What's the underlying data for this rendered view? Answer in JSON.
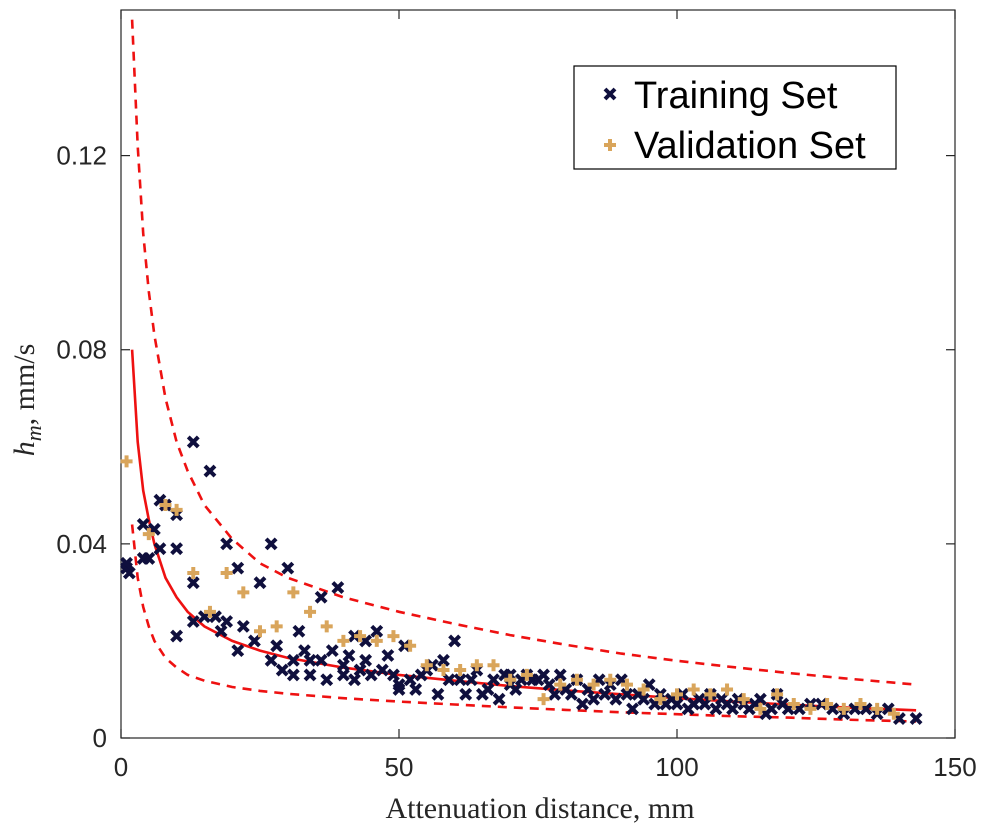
{
  "chart_data": {
    "type": "scatter",
    "title": "",
    "xlabel": "Attenuation distance, mm",
    "ylabel_main": "h",
    "ylabel_sub": "m",
    "ylabel_units": ", mm/s",
    "xlim": [
      0,
      150
    ],
    "ylim": [
      0,
      0.15
    ],
    "xticks": [
      0,
      50,
      100,
      150
    ],
    "xtick_labels": [
      "0",
      "50",
      "100",
      "150"
    ],
    "yticks": [
      0,
      0.04,
      0.08,
      0.12
    ],
    "ytick_labels": [
      "0",
      "0.04",
      "0.08",
      "0.12"
    ],
    "grid": false,
    "legend_position": "top-right",
    "series": [
      {
        "name": "Training Set",
        "marker": "x",
        "color": "#0f0f3d",
        "points": [
          [
            1,
            0.035
          ],
          [
            1,
            0.036
          ],
          [
            1.5,
            0.034
          ],
          [
            4,
            0.044
          ],
          [
            4,
            0.037
          ],
          [
            5,
            0.037
          ],
          [
            6,
            0.043
          ],
          [
            7,
            0.039
          ],
          [
            7,
            0.049
          ],
          [
            8,
            0.048
          ],
          [
            10,
            0.046
          ],
          [
            10,
            0.039
          ],
          [
            10,
            0.021
          ],
          [
            13,
            0.061
          ],
          [
            13,
            0.032
          ],
          [
            13,
            0.024
          ],
          [
            15,
            0.025
          ],
          [
            16,
            0.055
          ],
          [
            17,
            0.025
          ],
          [
            18,
            0.022
          ],
          [
            19,
            0.04
          ],
          [
            19,
            0.024
          ],
          [
            21,
            0.035
          ],
          [
            21,
            0.018
          ],
          [
            22,
            0.023
          ],
          [
            24,
            0.02
          ],
          [
            25,
            0.032
          ],
          [
            27,
            0.04
          ],
          [
            27,
            0.016
          ],
          [
            28,
            0.019
          ],
          [
            29,
            0.014
          ],
          [
            30,
            0.035
          ],
          [
            31,
            0.013
          ],
          [
            31,
            0.016
          ],
          [
            32,
            0.022
          ],
          [
            33,
            0.018
          ],
          [
            34,
            0.016
          ],
          [
            34,
            0.013
          ],
          [
            36,
            0.029
          ],
          [
            36,
            0.016
          ],
          [
            37,
            0.012
          ],
          [
            38,
            0.018
          ],
          [
            39,
            0.031
          ],
          [
            40,
            0.013
          ],
          [
            40,
            0.015
          ],
          [
            41,
            0.017
          ],
          [
            42,
            0.021
          ],
          [
            42,
            0.012
          ],
          [
            43,
            0.014
          ],
          [
            44,
            0.02
          ],
          [
            44,
            0.016
          ],
          [
            45,
            0.013
          ],
          [
            46,
            0.022
          ],
          [
            47,
            0.014
          ],
          [
            48,
            0.017
          ],
          [
            49,
            0.013
          ],
          [
            50,
            0.011
          ],
          [
            50,
            0.01
          ],
          [
            51,
            0.019
          ],
          [
            52,
            0.012
          ],
          [
            53,
            0.01
          ],
          [
            54,
            0.013
          ],
          [
            55,
            0.014
          ],
          [
            56,
            0.015
          ],
          [
            57,
            0.009
          ],
          [
            58,
            0.016
          ],
          [
            59,
            0.012
          ],
          [
            60,
            0.02
          ],
          [
            61,
            0.012
          ],
          [
            62,
            0.009
          ],
          [
            63,
            0.012
          ],
          [
            64,
            0.014
          ],
          [
            65,
            0.009
          ],
          [
            66,
            0.01
          ],
          [
            67,
            0.012
          ],
          [
            68,
            0.008
          ],
          [
            69,
            0.013
          ],
          [
            70,
            0.011
          ],
          [
            70,
            0.013
          ],
          [
            71,
            0.01
          ],
          [
            72,
            0.012
          ],
          [
            73,
            0.013
          ],
          [
            74,
            0.012
          ],
          [
            75,
            0.012
          ],
          [
            76,
            0.013
          ],
          [
            77,
            0.011
          ],
          [
            78,
            0.009
          ],
          [
            79,
            0.013
          ],
          [
            80,
            0.01
          ],
          [
            81,
            0.009
          ],
          [
            82,
            0.012
          ],
          [
            83,
            0.007
          ],
          [
            84,
            0.01
          ],
          [
            85,
            0.008
          ],
          [
            86,
            0.012
          ],
          [
            87,
            0.009
          ],
          [
            88,
            0.011
          ],
          [
            89,
            0.008
          ],
          [
            90,
            0.012
          ],
          [
            91,
            0.009
          ],
          [
            92,
            0.006
          ],
          [
            93,
            0.009
          ],
          [
            94,
            0.008
          ],
          [
            95,
            0.011
          ],
          [
            96,
            0.007
          ],
          [
            97,
            0.009
          ],
          [
            98,
            0.007
          ],
          [
            99,
            0.008
          ],
          [
            100,
            0.007
          ],
          [
            101,
            0.009
          ],
          [
            102,
            0.006
          ],
          [
            103,
            0.007
          ],
          [
            104,
            0.008
          ],
          [
            105,
            0.007
          ],
          [
            106,
            0.009
          ],
          [
            107,
            0.006
          ],
          [
            108,
            0.008
          ],
          [
            109,
            0.007
          ],
          [
            110,
            0.006
          ],
          [
            111,
            0.008
          ],
          [
            112,
            0.007
          ],
          [
            113,
            0.006
          ],
          [
            114,
            0.007
          ],
          [
            115,
            0.008
          ],
          [
            116,
            0.005
          ],
          [
            117,
            0.006
          ],
          [
            118,
            0.009
          ],
          [
            119,
            0.007
          ],
          [
            120,
            0.006
          ],
          [
            122,
            0.006
          ],
          [
            124,
            0.007
          ],
          [
            126,
            0.007
          ],
          [
            128,
            0.006
          ],
          [
            130,
            0.005
          ],
          [
            132,
            0.006
          ],
          [
            134,
            0.006
          ],
          [
            136,
            0.005
          ],
          [
            138,
            0.006
          ],
          [
            140,
            0.004
          ],
          [
            143,
            0.004
          ]
        ]
      },
      {
        "name": "Validation Set",
        "marker": "+",
        "color": "#d9a55b",
        "points": [
          [
            1,
            0.057
          ],
          [
            5,
            0.042
          ],
          [
            8,
            0.048
          ],
          [
            10,
            0.047
          ],
          [
            13,
            0.034
          ],
          [
            16,
            0.026
          ],
          [
            19,
            0.034
          ],
          [
            22,
            0.03
          ],
          [
            25,
            0.022
          ],
          [
            28,
            0.023
          ],
          [
            31,
            0.03
          ],
          [
            34,
            0.026
          ],
          [
            37,
            0.023
          ],
          [
            40,
            0.02
          ],
          [
            43,
            0.021
          ],
          [
            46,
            0.02
          ],
          [
            49,
            0.021
          ],
          [
            52,
            0.019
          ],
          [
            55,
            0.015
          ],
          [
            58,
            0.014
          ],
          [
            61,
            0.014
          ],
          [
            64,
            0.015
          ],
          [
            67,
            0.015
          ],
          [
            70,
            0.012
          ],
          [
            73,
            0.013
          ],
          [
            76,
            0.008
          ],
          [
            79,
            0.011
          ],
          [
            82,
            0.012
          ],
          [
            85,
            0.011
          ],
          [
            88,
            0.012
          ],
          [
            91,
            0.011
          ],
          [
            94,
            0.01
          ],
          [
            97,
            0.008
          ],
          [
            100,
            0.009
          ],
          [
            103,
            0.01
          ],
          [
            106,
            0.009
          ],
          [
            109,
            0.01
          ],
          [
            112,
            0.008
          ],
          [
            115,
            0.006
          ],
          [
            118,
            0.009
          ],
          [
            121,
            0.007
          ],
          [
            124,
            0.006
          ],
          [
            127,
            0.007
          ],
          [
            130,
            0.006
          ],
          [
            133,
            0.007
          ],
          [
            136,
            0.006
          ],
          [
            139,
            0.005
          ]
        ]
      },
      {
        "name": "",
        "kind": "line",
        "style": "solid",
        "color": "#ee1111",
        "x": [
          2,
          3,
          4,
          5,
          6,
          8,
          10,
          12,
          15,
          20,
          25,
          30,
          40,
          50,
          60,
          70,
          80,
          90,
          100,
          110,
          120,
          130,
          143
        ],
        "y": [
          0.08,
          0.061,
          0.051,
          0.045,
          0.04,
          0.033,
          0.029,
          0.026,
          0.023,
          0.02,
          0.018,
          0.0165,
          0.0145,
          0.013,
          0.0118,
          0.0107,
          0.0098,
          0.009,
          0.0082,
          0.0075,
          0.0069,
          0.0063,
          0.0057
        ]
      },
      {
        "name": "",
        "kind": "line",
        "style": "dashed",
        "color": "#ee1111",
        "x": [
          2,
          3,
          4,
          5,
          6,
          8,
          10,
          12,
          15,
          20,
          25,
          30,
          40,
          50,
          60,
          70,
          80,
          90,
          100,
          110,
          120,
          130,
          143
        ],
        "y": [
          0.148,
          0.122,
          0.104,
          0.092,
          0.083,
          0.07,
          0.061,
          0.055,
          0.048,
          0.041,
          0.036,
          0.033,
          0.029,
          0.026,
          0.0235,
          0.0212,
          0.0192,
          0.0174,
          0.0159,
          0.0146,
          0.0134,
          0.0123,
          0.011
        ]
      },
      {
        "name": "",
        "kind": "line",
        "style": "dashed",
        "color": "#ee1111",
        "x": [
          2,
          3,
          4,
          5,
          6,
          8,
          10,
          12,
          15,
          20,
          25,
          30,
          40,
          50,
          60,
          70,
          80,
          90,
          100,
          110,
          120,
          130,
          143
        ],
        "y": [
          0.044,
          0.033,
          0.027,
          0.023,
          0.02,
          0.0165,
          0.0145,
          0.013,
          0.0118,
          0.0105,
          0.0097,
          0.0091,
          0.0082,
          0.0075,
          0.0069,
          0.0063,
          0.0058,
          0.0053,
          0.0049,
          0.0045,
          0.0042,
          0.0038,
          0.0034
        ]
      }
    ]
  }
}
